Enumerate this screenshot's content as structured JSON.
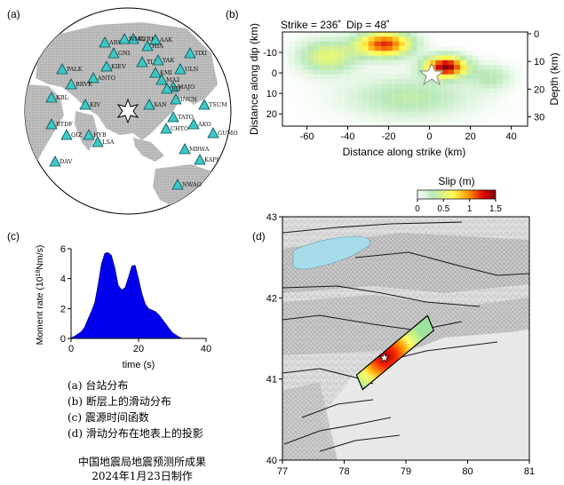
{
  "panels": {
    "a": {
      "label": "(a)"
    },
    "b": {
      "label": "(b)",
      "title_strike": "Strike = 236˚",
      "title_dip": "Dip = 48˚"
    },
    "c": {
      "label": "(c)"
    },
    "d": {
      "label": "(d)"
    }
  },
  "chart_data": [
    {
      "type": "map",
      "panel": "a",
      "title": "",
      "stations": [
        "KIEV",
        "ANTO",
        "GNI",
        "KIV",
        "ARU",
        "BRVK",
        "KURK",
        "AAK",
        "TLY",
        "YAK",
        "MA2",
        "MAJO",
        "INCN",
        "TATO",
        "CHTO",
        "XAN",
        "KMI",
        "HYB",
        "LSA",
        "MBWA",
        "NWAO",
        "BTDF",
        "DAV",
        "QIZ",
        "HIA",
        "WMQ",
        "ULN",
        "TIXI",
        "TSUM",
        "AKO",
        "PALK",
        "GUMO",
        "KAPI",
        "BJT",
        "KBL"
      ],
      "epicenter_symbol": "star"
    },
    {
      "type": "heatmap",
      "panel": "b",
      "xlabel": "Distance along strike (km)",
      "ylabel": "Distance along dip (km)",
      "ylabel_right": "Depth (km)",
      "xticks": [
        -60,
        -40,
        -20,
        0,
        20,
        40
      ],
      "yticks": [
        -10,
        0,
        10,
        20
      ],
      "yticks_right": [
        0,
        10,
        20,
        30
      ],
      "xlim": [
        -72,
        48
      ],
      "ylim": [
        -20,
        26
      ],
      "hypocenter": [
        0,
        0
      ],
      "slip_peak_m": 1.5
    },
    {
      "type": "colorbar",
      "title": "Slip (m)",
      "ticks": [
        "0",
        "0.5",
        "1",
        "1.5"
      ],
      "range": [
        0,
        1.5
      ],
      "colors": [
        "#ffffff",
        "#b8e8b8",
        "#ffff55",
        "#ff9900",
        "#dd0000",
        "#800000"
      ]
    },
    {
      "type": "area",
      "panel": "c",
      "xlabel": "time (s)",
      "ylabel": "Moment rate (10¹⁸Nm/s)",
      "xlim": [
        0,
        40
      ],
      "ylim": [
        0,
        6
      ],
      "xticks": [
        0,
        20,
        40
      ],
      "yticks": [
        0,
        2,
        4,
        6
      ],
      "fill": "#0000ee",
      "x": [
        0,
        1,
        2,
        3,
        4,
        5,
        6,
        7,
        8,
        9,
        10,
        11,
        12,
        13,
        14,
        15,
        16,
        17,
        18,
        19,
        20,
        21,
        22,
        23,
        24,
        25,
        26,
        27,
        28,
        29,
        30,
        31,
        32,
        33
      ],
      "values": [
        0.05,
        0.15,
        0.3,
        0.45,
        0.75,
        1.3,
        1.8,
        2.4,
        3.6,
        5.0,
        5.7,
        5.75,
        5.55,
        4.7,
        3.55,
        3.25,
        3.4,
        4.1,
        4.85,
        4.9,
        4.0,
        3.0,
        2.3,
        2.0,
        1.9,
        1.8,
        1.6,
        1.3,
        1.0,
        0.7,
        0.4,
        0.25,
        0.1,
        0.0
      ]
    },
    {
      "type": "map",
      "panel": "d",
      "xticks": [
        77,
        78,
        79,
        80,
        81
      ],
      "yticks": [
        40,
        41,
        42,
        43
      ],
      "xlim": [
        77,
        81
      ],
      "ylim": [
        40,
        43
      ],
      "fault_plane_corners": [
        [
          78.2,
          41.05
        ],
        [
          79.35,
          41.78
        ],
        [
          79.45,
          41.6
        ],
        [
          78.3,
          40.87
        ]
      ],
      "epicenter": [
        78.65,
        41.26
      ]
    }
  ],
  "legend": {
    "items": [
      "(a) 台站分布",
      "(b) 断层上的滑动分布",
      "(c) 震源时间函数",
      "(d) 滑动分布在地表上的投影"
    ]
  },
  "footer": {
    "line1": "中国地震局地震预测所成果",
    "line2": "2024年1月23日制作"
  }
}
